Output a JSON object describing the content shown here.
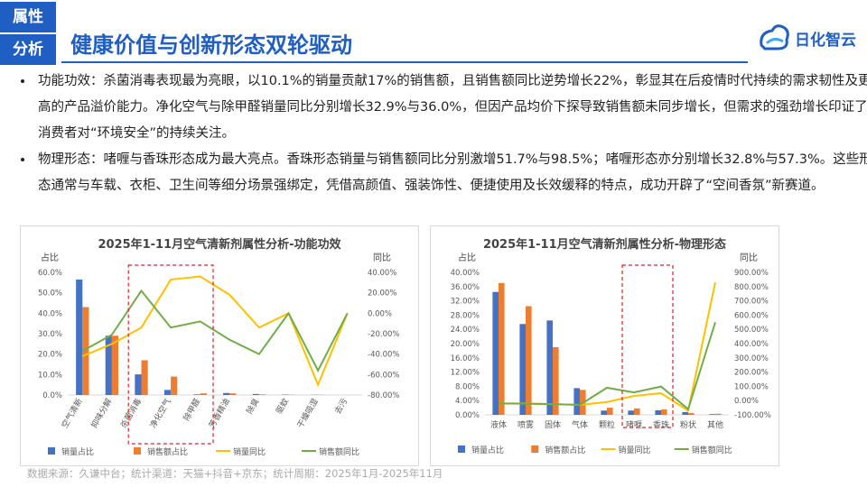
{
  "header": {
    "tag": [
      "属性",
      "分析"
    ],
    "title": "健康价值与创新形态双轮驱动",
    "logo": "日化智云"
  },
  "bullets": [
    "功能功效：杀菌消毒表现最为亮眼，以10.1%的销量贡献17%的销售额，且销售额同比逆势增长22%，彰显其在后疫情时代持续的需求韧性及更高的产品溢价能力。净化空气与除甲醛销量同比分别增长32.9%与36.0%，但因产品均价下探导致销售额未同步增长，但需求的强劲增长印证了消费者对“环境安全”的持续关注。",
    "物理形态：啫喱与香珠形态成为最大亮点。香珠形态销量与销售额同比分别激增51.7%与98.5%；啫喱形态亦分别增长32.8%与57.3%。这些形态通常与车载、衣柜、卫生间等细分场景强绑定，凭借高颜值、强装饰性、便捷使用及长效缓释的特点，成功开辟了“空间香氛”新赛道。"
  ],
  "chart_data": [
    {
      "type": "bar",
      "title": "2025年1-11月空气清新剂属性分析-功能功效",
      "ylabel": "占比",
      "y2label": "同比",
      "categories": [
        "空气清新",
        "抑味分解",
        "杀菌消毒",
        "净化空气",
        "除甲醛",
        "芳香精油",
        "除臭",
        "驱蚊",
        "干燥吸湿",
        "去污"
      ],
      "series": [
        {
          "name": "销量占比",
          "color": "#4472c4",
          "type": "bar",
          "values": [
            56.5,
            29,
            10.1,
            2.5,
            0.3,
            1,
            0.5,
            0.2,
            0.1,
            0
          ]
        },
        {
          "name": "销售额占比",
          "color": "#ed7d31",
          "type": "bar",
          "values": [
            43,
            29,
            17,
            9,
            0.8,
            0.8,
            0.3,
            0.1,
            0.1,
            0
          ]
        },
        {
          "name": "销量同比",
          "color": "#ffc000",
          "type": "line",
          "axis": "y2",
          "values": [
            -42,
            -30,
            -14,
            32.9,
            36,
            18,
            -14,
            0,
            -70,
            0
          ]
        },
        {
          "name": "销售额同比",
          "color": "#70ad47",
          "type": "line",
          "axis": "y2",
          "values": [
            -37,
            -21,
            22,
            -14,
            -8,
            -26,
            -40,
            0,
            -56,
            0
          ]
        }
      ],
      "ylim": [
        0,
        60
      ],
      "yticks": [
        {
          "value": 0,
          "label": "0.0%"
        },
        {
          "value": 10,
          "label": "10.0%"
        },
        {
          "value": 20,
          "label": "20.0%"
        },
        {
          "value": 30,
          "label": "30.0%"
        },
        {
          "value": 40,
          "label": "40.0%"
        },
        {
          "value": 50,
          "label": "50.0%"
        },
        {
          "value": 60,
          "label": "60.0%"
        }
      ],
      "y2lim": [
        -80,
        40
      ],
      "y2ticks": [
        {
          "value": -80,
          "label": "-80.00%"
        },
        {
          "value": -60,
          "label": "-60.00%"
        },
        {
          "value": -40,
          "label": "-40.00%"
        },
        {
          "value": -20,
          "label": "-20.00%"
        },
        {
          "value": 0,
          "label": "0.00%"
        },
        {
          "value": 20,
          "label": "20.00%"
        },
        {
          "value": 40,
          "label": "40.00%"
        }
      ]
    },
    {
      "type": "bar",
      "title": "2025年1-11月空气清新剂属性分析-物理形态",
      "ylabel": "占比",
      "y2label": "同比",
      "categories": [
        "液体",
        "喷雾",
        "固体",
        "气体",
        "颗粒",
        "啫喱",
        "香珠",
        "粉状",
        "其他"
      ],
      "series": [
        {
          "name": "销量占比",
          "color": "#4472c4",
          "type": "bar",
          "values": [
            34.5,
            25.5,
            26.5,
            7.5,
            1.2,
            1.2,
            1.3,
            0.8,
            0.2
          ]
        },
        {
          "name": "销售额占比",
          "color": "#ed7d31",
          "type": "bar",
          "values": [
            37,
            30.5,
            19,
            7,
            2,
            1.8,
            1.5,
            0.5,
            0.3
          ]
        },
        {
          "name": "销量同比",
          "color": "#ffc000",
          "type": "line",
          "axis": "y2",
          "values": [
            -20,
            -20,
            -25,
            -30,
            -10,
            32.8,
            51.7,
            -70,
            830
          ]
        },
        {
          "name": "销售额同比",
          "color": "#70ad47",
          "type": "line",
          "axis": "y2",
          "values": [
            -20,
            -22,
            -25,
            -30,
            90,
            57.3,
            98.5,
            -60,
            550
          ]
        }
      ],
      "ylim": [
        0,
        40
      ],
      "yticks": [
        {
          "value": 0,
          "label": "0.00%"
        },
        {
          "value": 4,
          "label": "4.00%"
        },
        {
          "value": 8,
          "label": "8.00%"
        },
        {
          "value": 12,
          "label": "12.00%"
        },
        {
          "value": 16,
          "label": "16.00%"
        },
        {
          "value": 20,
          "label": "20.00%"
        },
        {
          "value": 24,
          "label": "24.00%"
        },
        {
          "value": 28,
          "label": "28.00%"
        },
        {
          "value": 32,
          "label": "32.00%"
        },
        {
          "value": 36,
          "label": "36.00%"
        },
        {
          "value": 40,
          "label": "40.00%"
        }
      ],
      "y2lim": [
        -100,
        900
      ],
      "y2ticks": [
        {
          "value": -100,
          "label": "-100.00%"
        },
        {
          "value": 0,
          "label": "0.00%"
        },
        {
          "value": 100,
          "label": "100.00%"
        },
        {
          "value": 200,
          "label": "200.00%"
        },
        {
          "value": 300,
          "label": "300.00%"
        },
        {
          "value": 400,
          "label": "400.00%"
        },
        {
          "value": 500,
          "label": "500.00%"
        },
        {
          "value": 600,
          "label": "600.00%"
        },
        {
          "value": 700,
          "label": "700.00%"
        },
        {
          "value": 800,
          "label": "800.00%"
        },
        {
          "value": 900,
          "label": "900.00%"
        }
      ]
    }
  ],
  "footer": "数据来源：久谦中台；统计渠道：天猫+抖音+京东；统计周期：2025年1月-2025年11月"
}
